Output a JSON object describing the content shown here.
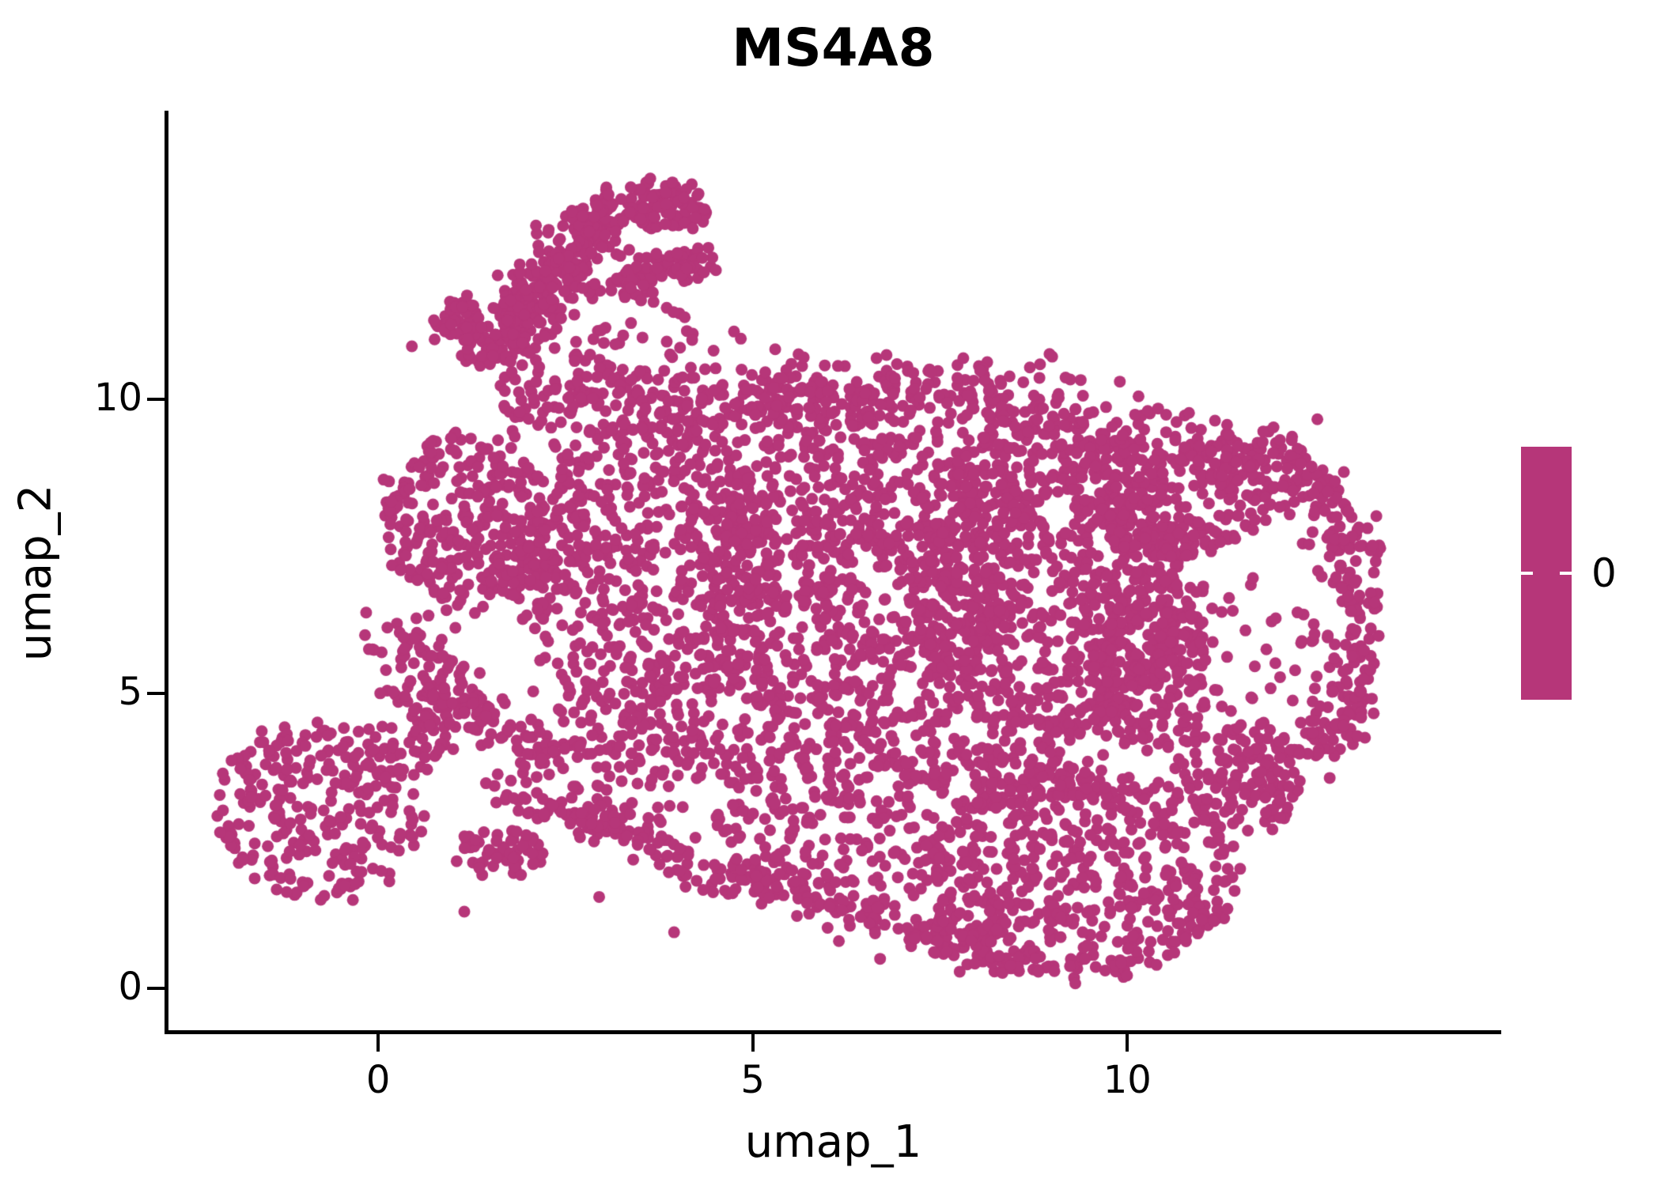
{
  "title": "MS4A8",
  "chart_data": {
    "type": "scatter",
    "title": "MS4A8",
    "xlabel": "umap_1",
    "ylabel": "umap_2",
    "x_ticks": [
      0,
      5,
      10
    ],
    "y_ticks": [
      0,
      5,
      10
    ],
    "x_range": [
      -2.82,
      14.97
    ],
    "y_range": [
      -0.74,
      14.9
    ],
    "grid": false,
    "point_color": "#B63679",
    "point_radius_px": 7.5,
    "legend": {
      "position": "right",
      "tick_label": "0",
      "bar_color": "#B63679"
    },
    "clusters": [
      {
        "name": "antenna-band",
        "type": "band",
        "pts": [
          [
            1.35,
            10.55
          ],
          [
            2.2,
            11.9
          ],
          [
            3.1,
            13.4
          ]
        ],
        "sigma": 0.22,
        "n": 290
      },
      {
        "name": "antenna-tip",
        "type": "ellipse",
        "cx": 3.85,
        "cy": 13.3,
        "rx": 0.6,
        "ry": 0.38,
        "rot": -15,
        "n": 95
      },
      {
        "name": "antenna-fork",
        "type": "band",
        "pts": [
          [
            3.2,
            12.05
          ],
          [
            4.35,
            12.4
          ]
        ],
        "sigma": 0.17,
        "n": 80
      },
      {
        "name": "antenna-left-clump",
        "type": "ellipse",
        "cx": 1.02,
        "cy": 11.35,
        "rx": 0.38,
        "ry": 0.33,
        "rot": 0,
        "n": 45
      },
      {
        "name": "antenna-scatter",
        "type": "ellipse",
        "cx": 2.9,
        "cy": 11.4,
        "rx": 1.45,
        "ry": 0.95,
        "rot": -30,
        "n": 90
      },
      {
        "name": "neck-band",
        "type": "band",
        "pts": [
          [
            1.7,
            10.15
          ],
          [
            3.3,
            9.9
          ],
          [
            4.5,
            10.0
          ]
        ],
        "sigma": 0.38,
        "n": 170
      },
      {
        "name": "left-lobe",
        "type": "ellipse",
        "cx": 1.2,
        "cy": 7.9,
        "rx": 1.15,
        "ry": 1.55,
        "rot": 8,
        "n": 300
      },
      {
        "name": "core-left",
        "type": "ellipse",
        "cx": 3.6,
        "cy": 7.1,
        "rx": 1.75,
        "ry": 2.6,
        "rot": 0,
        "n": 640
      },
      {
        "name": "core-center",
        "type": "ellipse",
        "cx": 6.4,
        "cy": 6.9,
        "rx": 2.05,
        "ry": 2.85,
        "rot": 0,
        "n": 800
      },
      {
        "name": "core-right",
        "type": "ellipse",
        "cx": 8.9,
        "cy": 6.9,
        "rx": 1.85,
        "ry": 2.8,
        "rot": 0,
        "n": 760
      },
      {
        "name": "top-edge-band",
        "type": "band",
        "pts": [
          [
            4.6,
            9.95
          ],
          [
            7.0,
            10.1
          ],
          [
            9.4,
            9.8
          ]
        ],
        "sigma": 0.33,
        "n": 300
      },
      {
        "name": "right-upper-lobe",
        "type": "ellipse",
        "cx": 10.6,
        "cy": 8.55,
        "rx": 1.35,
        "ry": 1.25,
        "rot": 0,
        "n": 300
      },
      {
        "name": "right-upper-arc",
        "type": "band",
        "pts": [
          [
            11.7,
            9.35
          ],
          [
            12.75,
            8.1
          ],
          [
            13.05,
            7.0
          ]
        ],
        "sigma": 0.27,
        "n": 130
      },
      {
        "name": "right-edge-arc",
        "type": "band",
        "pts": [
          [
            13.0,
            7.0
          ],
          [
            13.15,
            5.9
          ],
          [
            12.9,
            4.6
          ],
          [
            12.35,
            3.9
          ]
        ],
        "sigma": 0.2,
        "n": 130
      },
      {
        "name": "right-hole-sparse",
        "type": "ellipse",
        "cx": 11.6,
        "cy": 5.7,
        "rx": 1.2,
        "ry": 1.3,
        "rot": 0,
        "n": 50
      },
      {
        "name": "right-inner-band",
        "type": "ellipse",
        "cx": 10.3,
        "cy": 5.6,
        "rx": 0.8,
        "ry": 1.6,
        "rot": 0,
        "n": 230
      },
      {
        "name": "bottom-left-cluster",
        "type": "ellipse",
        "cx": -0.78,
        "cy": 3.0,
        "rx": 1.4,
        "ry": 1.5,
        "rot": 10,
        "n": 270
      },
      {
        "name": "bl-bridge",
        "type": "band",
        "pts": [
          [
            0.15,
            4.1
          ],
          [
            1.2,
            5.1
          ]
        ],
        "sigma": 0.35,
        "n": 80
      },
      {
        "name": "small-cluster",
        "type": "ellipse",
        "cx": 1.65,
        "cy": 2.3,
        "rx": 0.6,
        "ry": 0.38,
        "rot": 0,
        "n": 60
      },
      {
        "name": "bottom-chain",
        "type": "band",
        "pts": [
          [
            1.6,
            3.25
          ],
          [
            2.7,
            2.9
          ],
          [
            3.6,
            2.55
          ],
          [
            4.2,
            2.0
          ],
          [
            5.1,
            1.8
          ],
          [
            6.0,
            1.5
          ],
          [
            7.0,
            1.05
          ],
          [
            7.9,
            0.65
          ],
          [
            8.6,
            0.4
          ]
        ],
        "sigma": 0.18,
        "n": 300
      },
      {
        "name": "chain-scatter",
        "type": "ellipse",
        "cx": 6.2,
        "cy": 2.55,
        "rx": 1.8,
        "ry": 0.8,
        "rot": -8,
        "n": 120
      },
      {
        "name": "bottom-right-mass",
        "type": "ellipse",
        "cx": 9.3,
        "cy": 1.95,
        "rx": 2.15,
        "ry": 1.8,
        "rot": 0,
        "n": 560,
        "ymin": 0.05
      },
      {
        "name": "br-right-link",
        "type": "ellipse",
        "cx": 11.55,
        "cy": 3.6,
        "rx": 0.85,
        "ry": 0.95,
        "rot": 20,
        "n": 140
      },
      {
        "name": "mass-bottom-band",
        "type": "band",
        "pts": [
          [
            2.3,
            4.2
          ],
          [
            5.5,
            3.9
          ],
          [
            9.5,
            3.6
          ]
        ],
        "sigma": 0.45,
        "n": 380
      },
      {
        "name": "left-diagonal-edge",
        "type": "band",
        "pts": [
          [
            0.15,
            6.2
          ],
          [
            1.25,
            4.75
          ],
          [
            2.5,
            3.8
          ]
        ],
        "sigma": 0.27,
        "n": 130
      }
    ],
    "outlier_points": [
      [
        4.2,
        12.9
      ],
      [
        4.75,
        11.15
      ],
      [
        5.3,
        10.85
      ],
      [
        0.45,
        10.9
      ],
      [
        2.15,
        10.55
      ],
      [
        12.95,
        8.1
      ],
      [
        13.3,
        6.55
      ],
      [
        3.95,
        0.95
      ],
      [
        6.15,
        0.8
      ],
      [
        6.7,
        0.5
      ],
      [
        2.95,
        1.55
      ],
      [
        1.15,
        1.3
      ],
      [
        10.15,
        10.05
      ],
      [
        9.9,
        10.3
      ]
    ]
  }
}
